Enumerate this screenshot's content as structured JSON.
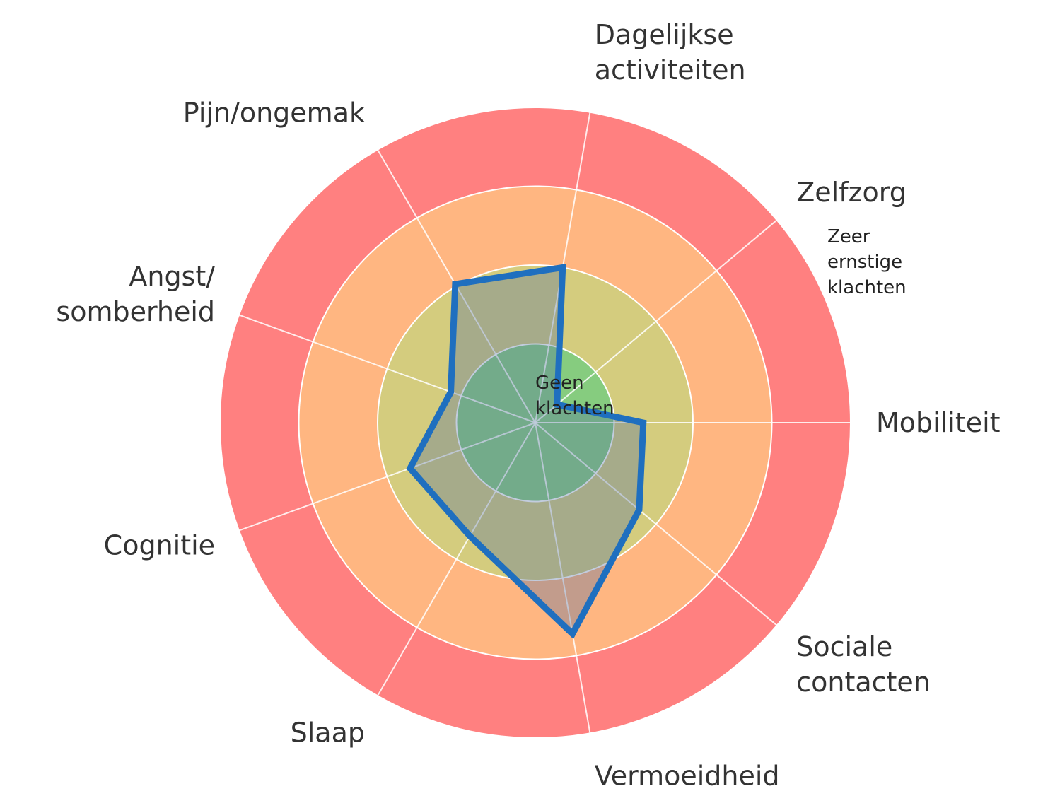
{
  "chart_data": {
    "type": "radar",
    "categories": [
      "Mobiliteit",
      "Zelfzorg",
      "Dagelijkse\nactiviteiten",
      "Pijn/ongemak",
      "Angst/\nsomberheid",
      "Cognitie",
      "Slaap",
      "Vermoeidheid",
      "Sociale\ncontacten"
    ],
    "series": [
      {
        "color": "#1f6fbf",
        "values": [
          1.37,
          0.36,
          2.0,
          2.03,
          1.14,
          1.69,
          1.66,
          2.72,
          1.72
        ]
      }
    ],
    "rlim": [
      0,
      4
    ],
    "rticks": [
      0,
      1,
      2,
      3,
      4
    ],
    "band_colors": [
      "#86cc7f",
      "#d4cc7e",
      "#ffb681",
      "#ff8080"
    ],
    "annotations": [
      {
        "text": "Geen\nklachten"
      },
      {
        "text": "Zeer\nernstige\nklachten"
      }
    ]
  }
}
